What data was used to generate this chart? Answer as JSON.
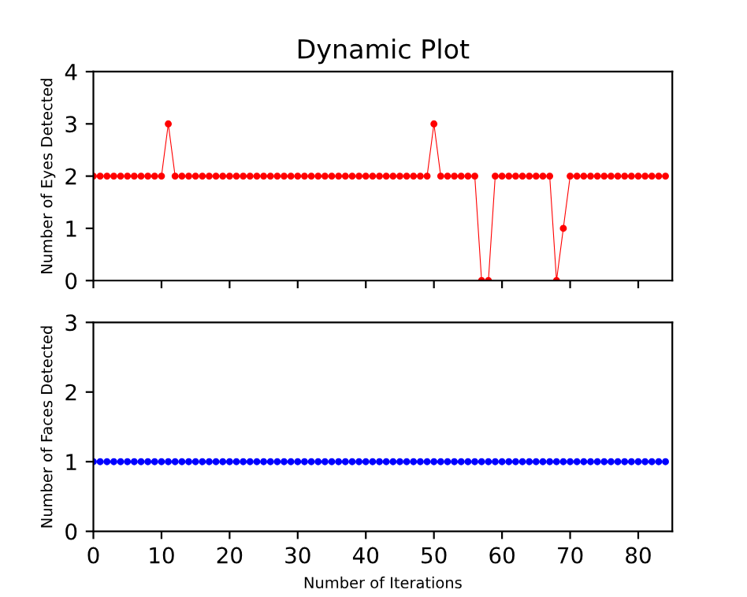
{
  "chart_data": [
    {
      "type": "line",
      "title": "Dynamic Plot",
      "ylabel": "Number of Eyes Detected",
      "x": [
        0,
        1,
        2,
        3,
        4,
        5,
        6,
        7,
        8,
        9,
        10,
        11,
        12,
        13,
        14,
        15,
        16,
        17,
        18,
        19,
        20,
        21,
        22,
        23,
        24,
        25,
        26,
        27,
        28,
        29,
        30,
        31,
        32,
        33,
        34,
        35,
        36,
        37,
        38,
        39,
        40,
        41,
        42,
        43,
        44,
        45,
        46,
        47,
        48,
        49,
        50,
        51,
        52,
        53,
        54,
        55,
        56,
        57,
        58,
        59,
        60,
        61,
        62,
        63,
        64,
        65,
        66,
        67,
        68,
        69,
        70,
        71,
        72,
        73,
        74,
        75,
        76,
        77,
        78,
        79,
        80,
        81,
        82,
        83,
        84
      ],
      "series": [
        {
          "color": "#ff0000",
          "values": [
            2,
            2,
            2,
            2,
            2,
            2,
            2,
            2,
            2,
            2,
            2,
            3,
            2,
            2,
            2,
            2,
            2,
            2,
            2,
            2,
            2,
            2,
            2,
            2,
            2,
            2,
            2,
            2,
            2,
            2,
            2,
            2,
            2,
            2,
            2,
            2,
            2,
            2,
            2,
            2,
            2,
            2,
            2,
            2,
            2,
            2,
            2,
            2,
            2,
            2,
            3,
            2,
            2,
            2,
            2,
            2,
            2,
            0,
            0,
            2,
            2,
            2,
            2,
            2,
            2,
            2,
            2,
            2,
            0,
            1,
            2,
            2,
            2,
            2,
            2,
            2,
            2,
            2,
            2,
            2,
            2,
            2,
            2,
            2,
            2
          ]
        }
      ],
      "xlim": [
        0,
        85
      ],
      "xticks": [
        0,
        10,
        20,
        30,
        40,
        50,
        60,
        70,
        80
      ],
      "ylim": [
        0,
        4
      ],
      "yticks": [
        0,
        1,
        2,
        3,
        4
      ],
      "tick_labels": "y",
      "marker": "circle",
      "line_style": "solid",
      "grid": false,
      "legend": false
    },
    {
      "type": "line",
      "xlabel": "Number of Iterations",
      "ylabel": "Number of Faces Detected",
      "x": [
        0,
        1,
        2,
        3,
        4,
        5,
        6,
        7,
        8,
        9,
        10,
        11,
        12,
        13,
        14,
        15,
        16,
        17,
        18,
        19,
        20,
        21,
        22,
        23,
        24,
        25,
        26,
        27,
        28,
        29,
        30,
        31,
        32,
        33,
        34,
        35,
        36,
        37,
        38,
        39,
        40,
        41,
        42,
        43,
        44,
        45,
        46,
        47,
        48,
        49,
        50,
        51,
        52,
        53,
        54,
        55,
        56,
        57,
        58,
        59,
        60,
        61,
        62,
        63,
        64,
        65,
        66,
        67,
        68,
        69,
        70,
        71,
        72,
        73,
        74,
        75,
        76,
        77,
        78,
        79,
        80,
        81,
        82,
        83,
        84
      ],
      "series": [
        {
          "color": "#0000ff",
          "values": [
            1,
            1,
            1,
            1,
            1,
            1,
            1,
            1,
            1,
            1,
            1,
            1,
            1,
            1,
            1,
            1,
            1,
            1,
            1,
            1,
            1,
            1,
            1,
            1,
            1,
            1,
            1,
            1,
            1,
            1,
            1,
            1,
            1,
            1,
            1,
            1,
            1,
            1,
            1,
            1,
            1,
            1,
            1,
            1,
            1,
            1,
            1,
            1,
            1,
            1,
            1,
            1,
            1,
            1,
            1,
            1,
            1,
            1,
            1,
            1,
            1,
            1,
            1,
            1,
            1,
            1,
            1,
            1,
            1,
            1,
            1,
            1,
            1,
            1,
            1,
            1,
            1,
            1,
            1,
            1,
            1,
            1,
            1,
            1,
            1
          ]
        }
      ],
      "xlim": [
        0,
        85
      ],
      "xticks": [
        0,
        10,
        20,
        30,
        40,
        50,
        60,
        70,
        80
      ],
      "ylim": [
        0,
        3
      ],
      "yticks": [
        0,
        1,
        2,
        3
      ],
      "marker": "circle",
      "line_style": "solid",
      "grid": false,
      "legend": false
    }
  ]
}
